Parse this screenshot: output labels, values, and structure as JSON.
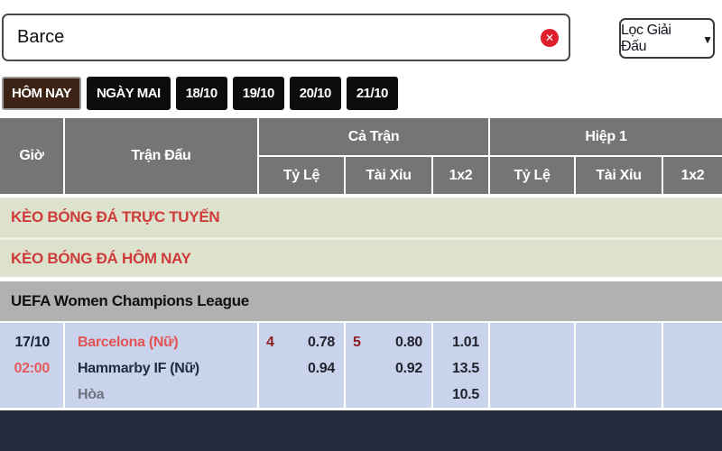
{
  "search": {
    "value": "Barce",
    "clear_icon": "✕"
  },
  "filter": {
    "label": "Lọc Giải Đấu",
    "caret": "▼"
  },
  "tabs": [
    {
      "label": "HÔM NAY",
      "active": true
    },
    {
      "label": "NGÀY MAI",
      "active": false
    },
    {
      "label": "18/10",
      "active": false
    },
    {
      "label": "19/10",
      "active": false
    },
    {
      "label": "20/10",
      "active": false
    },
    {
      "label": "21/10",
      "active": false
    }
  ],
  "table_header": {
    "time": "Giờ",
    "match": "Trận Đấu",
    "full_match_group": "Cả Trận",
    "first_half_group": "Hiệp 1",
    "sub_columns": [
      "Tỷ Lệ",
      "Tài Xỉu",
      "1x2",
      "Tỷ Lệ",
      "Tài Xỉu",
      "1x2"
    ]
  },
  "banners": [
    {
      "label": "KÈO BÓNG ĐÁ TRỰC TUYẾN"
    },
    {
      "label": "KÈO BÓNG ĐÁ HÔM NAY"
    }
  ],
  "league": {
    "name": "UEFA Women Champions League"
  },
  "match": {
    "date": "17/10",
    "time": "02:00",
    "home_team": "Barcelona (Nữ)",
    "away_team": "Hammarby IF (Nữ)",
    "draw_label": "Hòa",
    "full_match": {
      "handicap_line": "4",
      "handicap_home": "0.78",
      "handicap_away": "0.94",
      "ou_line": "5",
      "ou_over": "0.80",
      "ou_under": "0.92",
      "odds_1x2_home": "1.01",
      "odds_1x2_away": "13.5",
      "odds_1x2_draw": "10.5"
    }
  },
  "colors": {
    "accent_red": "#cf3a3a",
    "clear_icon_red": "#e01f2d",
    "banner_bg": "#dce2cb",
    "header_gray": "#757575",
    "league_bar_gray": "#b1b1b1",
    "row_blue": "#c9d4ec",
    "footer_navy": "#252c3e",
    "active_tab_brown": "#3c2315",
    "time_red": "#e45b5b",
    "handicap_maroon": "#8e1f1f"
  }
}
